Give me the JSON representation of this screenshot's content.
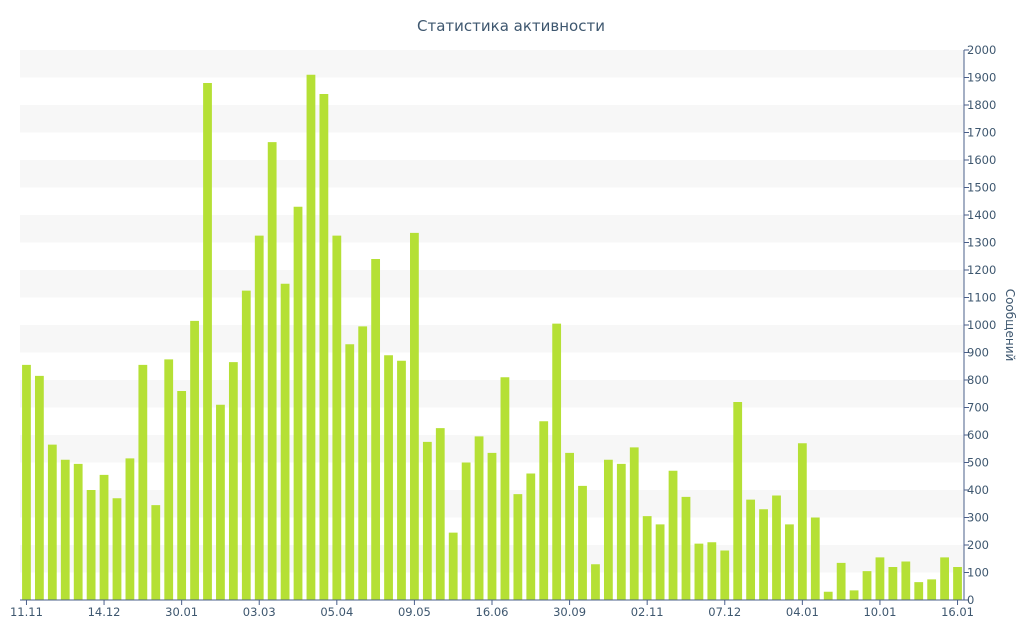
{
  "chart_data": {
    "type": "bar",
    "title": "Статистика активности",
    "ylabel": "Сообщений",
    "xlabel": "",
    "ylim": [
      0,
      2000
    ],
    "y_ticks": [
      0,
      100,
      200,
      300,
      400,
      500,
      600,
      700,
      800,
      900,
      1000,
      1100,
      1200,
      1300,
      1400,
      1500,
      1600,
      1700,
      1800,
      1900,
      2000
    ],
    "y_axis_side": "right",
    "grid": "alternating-bands",
    "bar_color": "#b5e035",
    "x_tick_labels": [
      {
        "index": 0,
        "label": "11.11"
      },
      {
        "index": 6,
        "label": "14.12"
      },
      {
        "index": 12,
        "label": "30.01"
      },
      {
        "index": 18,
        "label": "03.03"
      },
      {
        "index": 24,
        "label": "05.04"
      },
      {
        "index": 30,
        "label": "09.05"
      },
      {
        "index": 36,
        "label": "16.06"
      },
      {
        "index": 42,
        "label": "30.09"
      },
      {
        "index": 48,
        "label": "02.11"
      },
      {
        "index": 54,
        "label": "07.12"
      },
      {
        "index": 60,
        "label": "04.01"
      },
      {
        "index": 66,
        "label": "10.01"
      },
      {
        "index": 72,
        "label": "16.01"
      }
    ],
    "values": [
      855,
      815,
      565,
      510,
      495,
      400,
      455,
      370,
      515,
      855,
      345,
      875,
      760,
      1015,
      1880,
      710,
      865,
      1125,
      1325,
      1665,
      1150,
      1430,
      1910,
      1840,
      1325,
      930,
      995,
      1240,
      890,
      870,
      1335,
      575,
      625,
      245,
      500,
      595,
      535,
      810,
      385,
      460,
      650,
      1005,
      535,
      415,
      130,
      510,
      495,
      555,
      305,
      275,
      470,
      375,
      205,
      210,
      180,
      720,
      365,
      330,
      380,
      275,
      570,
      300,
      30,
      135,
      35,
      105,
      155,
      120,
      140,
      65,
      75,
      155,
      120
    ]
  }
}
